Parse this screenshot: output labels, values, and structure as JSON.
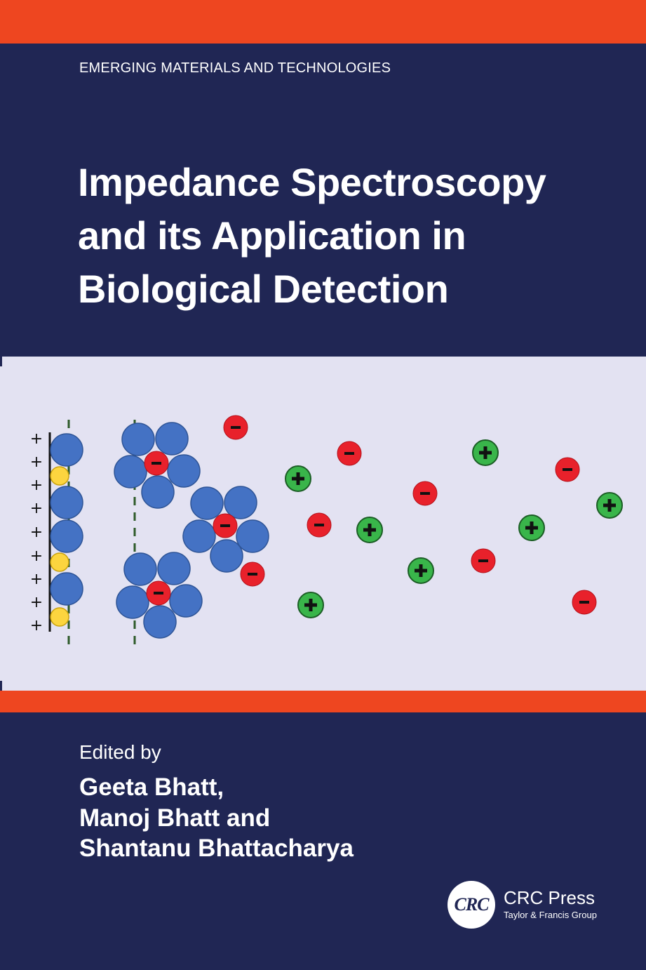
{
  "series": "EMERGING MATERIALS AND TECHNOLOGIES",
  "title": {
    "line1": "Impedance Spectroscopy",
    "line2": "and its Application in",
    "line3": "Biological Detection"
  },
  "edited_by": "Edited by",
  "editors": {
    "line1": "Geeta Bhatt,",
    "line2": "Manoj Bhatt and",
    "line3": "Shantanu Bhattacharya"
  },
  "publisher": {
    "logo_text": "CRC",
    "name": "CRC Press",
    "tagline": "Taylor & Francis Group"
  },
  "illustration": {
    "electrode_charges": [
      "+",
      "+",
      "+",
      "+",
      "+",
      "+",
      "+",
      "+",
      "+"
    ],
    "colors": {
      "accent_orange": "#ee4620",
      "navy": "#202654",
      "panel": "#e3e2f2",
      "blue_molecule": "#4472c4",
      "yellow_molecule": "#fcd53f",
      "negative_ion": "#e8212b",
      "positive_ion": "#39b54a"
    }
  }
}
